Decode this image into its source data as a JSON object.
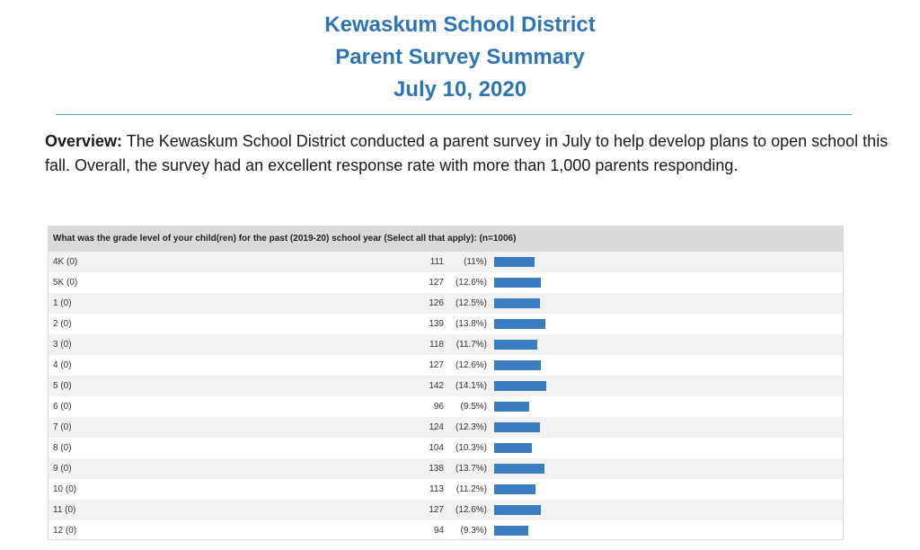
{
  "header": {
    "line1": "Kewaskum School District",
    "line2": "Parent Survey Summary",
    "line3": "July 10, 2020"
  },
  "overview": {
    "label": "Overview:",
    "text": " The Kewaskum School District conducted a parent survey in July to help develop plans to open school this fall. Overall, the survey had an excellent response rate with more than 1,000 parents responding."
  },
  "colors": {
    "title": "#2e74b5",
    "bar": "#3b7dc1"
  },
  "survey": {
    "question": "What was the grade level of your child(ren) for the past (2019-20) school year (Select all that apply): (n=1006)",
    "rows": [
      {
        "label": "4K (0)",
        "count": "111",
        "pct": "(11%)",
        "value": 11.0
      },
      {
        "label": "5K (0)",
        "count": "127",
        "pct": "(12.6%)",
        "value": 12.6
      },
      {
        "label": "1 (0)",
        "count": "126",
        "pct": "(12.5%)",
        "value": 12.5
      },
      {
        "label": "2 (0)",
        "count": "139",
        "pct": "(13.8%)",
        "value": 13.8
      },
      {
        "label": "3 (0)",
        "count": "118",
        "pct": "(11.7%)",
        "value": 11.7
      },
      {
        "label": "4 (0)",
        "count": "127",
        "pct": "(12.6%)",
        "value": 12.6
      },
      {
        "label": "5 (0)",
        "count": "142",
        "pct": "(14.1%)",
        "value": 14.1
      },
      {
        "label": "6 (0)",
        "count": "96",
        "pct": "(9.5%)",
        "value": 9.5
      },
      {
        "label": "7 (0)",
        "count": "124",
        "pct": "(12.3%)",
        "value": 12.3
      },
      {
        "label": "8 (0)",
        "count": "104",
        "pct": "(10.3%)",
        "value": 10.3
      },
      {
        "label": "9 (0)",
        "count": "138",
        "pct": "(13.7%)",
        "value": 13.7
      },
      {
        "label": "10 (0)",
        "count": "113",
        "pct": "(11.2%)",
        "value": 11.2
      },
      {
        "label": "11 (0)",
        "count": "127",
        "pct": "(12.6%)",
        "value": 12.6
      },
      {
        "label": "12 (0)",
        "count": "94",
        "pct": "(9.3%)",
        "value": 9.3
      }
    ]
  }
}
